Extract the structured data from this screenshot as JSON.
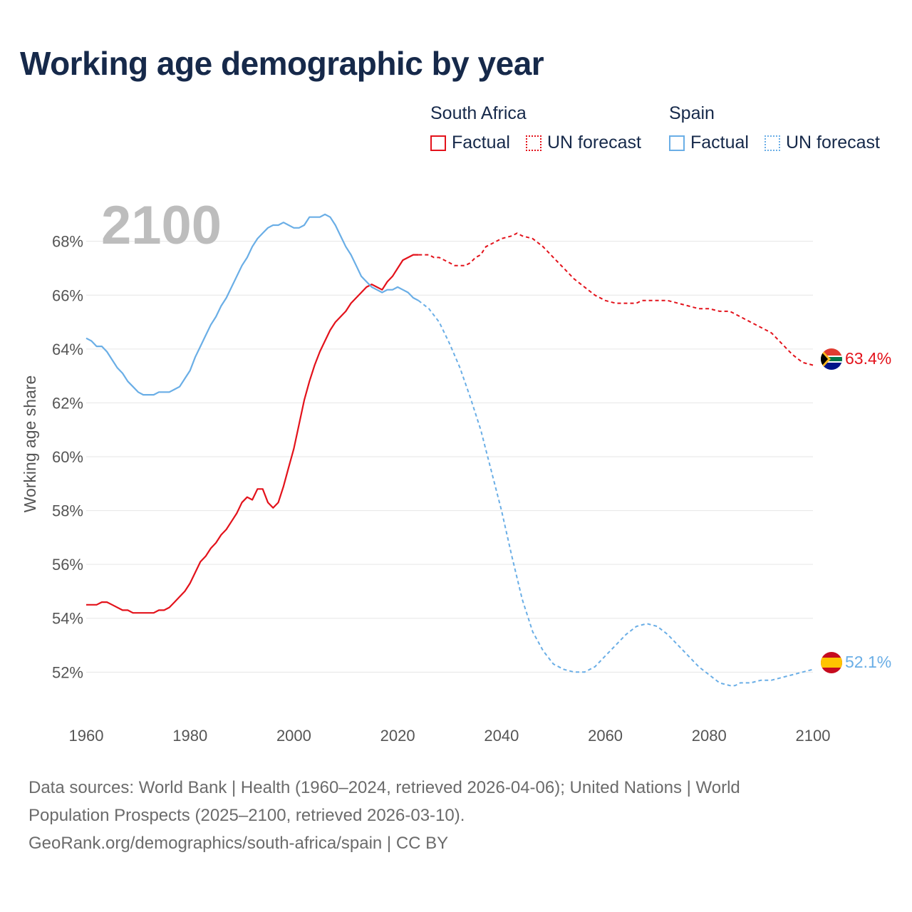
{
  "chart_data": {
    "type": "line",
    "title": "Working age demographic by year",
    "ylabel": "Working age share",
    "xlabel": "",
    "year_display": "2100",
    "xlim": [
      1960,
      2100
    ],
    "ylim": [
      50.5,
      69.5
    ],
    "x_ticks": [
      1960,
      1980,
      2000,
      2020,
      2040,
      2060,
      2080,
      2100
    ],
    "y_ticks": [
      52,
      54,
      56,
      58,
      60,
      62,
      64,
      66,
      68
    ],
    "y_tick_suffix": "%",
    "legend": {
      "groups": [
        {
          "name": "South Africa",
          "factual_label": "Factual",
          "forecast_label": "UN forecast"
        },
        {
          "name": "Spain",
          "factual_label": "Factual",
          "forecast_label": "UN forecast"
        }
      ]
    },
    "series": [
      {
        "name": "South Africa",
        "color": "#e3121b",
        "end_label": "63.4%",
        "factual": {
          "x": [
            1960,
            1962,
            1963,
            1964,
            1965,
            1967,
            1968,
            1969,
            1971,
            1973,
            1974,
            1975,
            1976,
            1977,
            1978,
            1979,
            1980,
            1981,
            1982,
            1983,
            1984,
            1985,
            1986,
            1987,
            1988,
            1989,
            1990,
            1991,
            1992,
            1993,
            1994,
            1995,
            1996,
            1997,
            1998,
            1999,
            2000,
            2001,
            2002,
            2003,
            2004,
            2005,
            2006,
            2007,
            2008,
            2009,
            2010,
            2011,
            2012,
            2013,
            2014,
            2015,
            2016,
            2017,
            2018,
            2019,
            2020,
            2021,
            2022,
            2023,
            2024
          ],
          "y": [
            54.5,
            54.5,
            54.6,
            54.6,
            54.5,
            54.3,
            54.3,
            54.2,
            54.2,
            54.2,
            54.3,
            54.3,
            54.4,
            54.6,
            54.8,
            55.0,
            55.3,
            55.7,
            56.1,
            56.3,
            56.6,
            56.8,
            57.1,
            57.3,
            57.6,
            57.9,
            58.3,
            58.5,
            58.4,
            58.8,
            58.8,
            58.3,
            58.1,
            58.3,
            58.9,
            59.6,
            60.3,
            61.2,
            62.1,
            62.8,
            63.4,
            63.9,
            64.3,
            64.7,
            65.0,
            65.2,
            65.4,
            65.7,
            65.9,
            66.1,
            66.3,
            66.4,
            66.3,
            66.2,
            66.5,
            66.7,
            67.0,
            67.3,
            67.4,
            67.5,
            67.5
          ]
        },
        "forecast": {
          "x": [
            2024,
            2025,
            2026,
            2027,
            2028,
            2030,
            2031,
            2033,
            2034,
            2035,
            2036,
            2037,
            2038,
            2040,
            2042,
            2043,
            2044,
            2046,
            2048,
            2050,
            2052,
            2054,
            2056,
            2058,
            2060,
            2062,
            2064,
            2066,
            2067,
            2068,
            2070,
            2071,
            2072,
            2074,
            2076,
            2078,
            2080,
            2082,
            2084,
            2086,
            2088,
            2090,
            2092,
            2094,
            2096,
            2098,
            2100
          ],
          "y": [
            67.5,
            67.5,
            67.5,
            67.4,
            67.4,
            67.2,
            67.1,
            67.1,
            67.2,
            67.4,
            67.5,
            67.8,
            67.9,
            68.1,
            68.2,
            68.3,
            68.2,
            68.1,
            67.8,
            67.4,
            67.0,
            66.6,
            66.3,
            66.0,
            65.8,
            65.7,
            65.7,
            65.7,
            65.8,
            65.8,
            65.8,
            65.8,
            65.8,
            65.7,
            65.6,
            65.5,
            65.5,
            65.4,
            65.4,
            65.2,
            65.0,
            64.8,
            64.6,
            64.2,
            63.8,
            63.5,
            63.4
          ]
        }
      },
      {
        "name": "Spain",
        "color": "#6aaee6",
        "end_label": "52.1%",
        "factual": {
          "x": [
            1960,
            1961,
            1962,
            1963,
            1964,
            1965,
            1966,
            1967,
            1968,
            1969,
            1970,
            1971,
            1972,
            1973,
            1974,
            1975,
            1976,
            1977,
            1978,
            1979,
            1980,
            1981,
            1982,
            1983,
            1984,
            1985,
            1986,
            1987,
            1988,
            1989,
            1990,
            1991,
            1992,
            1993,
            1994,
            1995,
            1996,
            1997,
            1998,
            1999,
            2000,
            2001,
            2002,
            2003,
            2004,
            2005,
            2006,
            2007,
            2008,
            2009,
            2010,
            2011,
            2012,
            2013,
            2014,
            2015,
            2016,
            2017,
            2018,
            2019,
            2020,
            2021,
            2022,
            2023,
            2024
          ],
          "y": [
            64.4,
            64.3,
            64.1,
            64.1,
            63.9,
            63.6,
            63.3,
            63.1,
            62.8,
            62.6,
            62.4,
            62.3,
            62.3,
            62.3,
            62.4,
            62.4,
            62.4,
            62.5,
            62.6,
            62.9,
            63.2,
            63.7,
            64.1,
            64.5,
            64.9,
            65.2,
            65.6,
            65.9,
            66.3,
            66.7,
            67.1,
            67.4,
            67.8,
            68.1,
            68.3,
            68.5,
            68.6,
            68.6,
            68.7,
            68.6,
            68.5,
            68.5,
            68.6,
            68.9,
            68.9,
            68.9,
            69.0,
            68.9,
            68.6,
            68.2,
            67.8,
            67.5,
            67.1,
            66.7,
            66.5,
            66.3,
            66.2,
            66.1,
            66.2,
            66.2,
            66.3,
            66.2,
            66.1,
            65.9,
            65.8
          ]
        },
        "forecast": {
          "x": [
            2024,
            2026,
            2028,
            2030,
            2032,
            2034,
            2036,
            2038,
            2040,
            2042,
            2044,
            2046,
            2048,
            2050,
            2052,
            2054,
            2056,
            2058,
            2060,
            2062,
            2064,
            2066,
            2068,
            2070,
            2072,
            2074,
            2076,
            2078,
            2080,
            2082,
            2084,
            2085,
            2086,
            2088,
            2090,
            2092,
            2094,
            2096,
            2098,
            2100
          ],
          "y": [
            65.8,
            65.5,
            65.0,
            64.2,
            63.3,
            62.2,
            61.0,
            59.5,
            58.0,
            56.3,
            54.7,
            53.5,
            52.8,
            52.3,
            52.1,
            52.0,
            52.0,
            52.2,
            52.6,
            53.0,
            53.4,
            53.7,
            53.8,
            53.7,
            53.4,
            53.0,
            52.6,
            52.2,
            51.9,
            51.6,
            51.5,
            51.5,
            51.6,
            51.6,
            51.7,
            51.7,
            51.8,
            51.9,
            52.0,
            52.1
          ]
        }
      }
    ]
  },
  "footer": {
    "line1": "Data sources: World Bank | Health (1960–2024, retrieved 2026-04-06); United Nations | World",
    "line2": "Population Prospects (2025–2100, retrieved 2026-03-10).",
    "line3": "GeoRank.org/demographics/south-africa/spain | CC BY"
  }
}
